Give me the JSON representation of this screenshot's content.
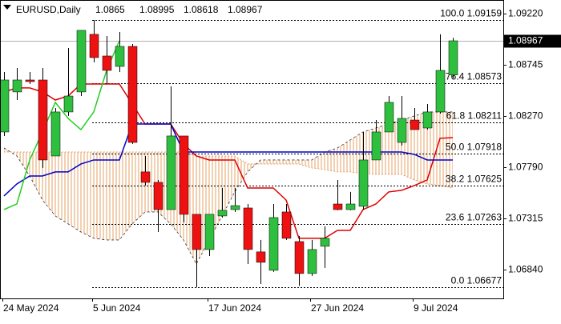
{
  "chart_data": {
    "type": "candlestick",
    "title": "EURUSD,Daily",
    "categories": [
      "24 May 2024",
      null,
      null,
      null,
      null,
      null,
      null,
      "5 Jun 2024",
      null,
      null,
      null,
      null,
      null,
      null,
      null,
      null,
      "17 Jun 2024",
      null,
      null,
      null,
      null,
      null,
      null,
      null,
      "27 Jun 2024",
      null,
      null,
      null,
      null,
      null,
      null,
      null,
      "9 Jul 2024",
      null,
      null,
      null
    ],
    "open": [
      1.0812,
      1.08492,
      1.08603,
      1.08603,
      1.07897,
      1.08306,
      1.08492,
      1.09027,
      1.08826,
      1.08729,
      1.08915,
      1.07749,
      1.07652,
      1.07399,
      1.08083,
      1.07355,
      1.07028,
      1.0734,
      1.07399,
      1.07414,
      1.07006,
      1.06835,
      1.07377,
      1.07102,
      1.06805,
      1.07058,
      1.07451,
      1.07399,
      1.07429,
      1.0786,
      1.0812,
      1.08023,
      1.08231,
      1.08157,
      1.08306,
      1.0865
    ],
    "high": [
      1.08677,
      1.08714,
      1.08677,
      1.08714,
      1.08343,
      1.089,
      1.09064,
      1.09159,
      1.09012,
      1.09049,
      1.08937,
      1.07897,
      1.07674,
      1.08544,
      1.08083,
      1.07355,
      1.07355,
      1.076,
      1.076,
      1.07451,
      1.07117,
      1.07451,
      1.07451,
      1.07154,
      1.07117,
      1.07243,
      1.07674,
      1.07563,
      1.0812,
      1.08231,
      1.08454,
      1.08454,
      1.08343,
      1.0838,
      1.09027,
      1.08995
    ],
    "low": [
      1.08083,
      1.08417,
      1.08566,
      1.07786,
      1.07897,
      1.08269,
      1.08454,
      1.08766,
      1.08566,
      1.08677,
      1.08009,
      1.07622,
      1.07191,
      1.07399,
      1.0728,
      1.06677,
      1.06968,
      1.07325,
      1.07377,
      1.06894,
      1.06708,
      1.0682,
      1.07117,
      1.0669,
      1.06783,
      1.06857,
      1.07392,
      1.07392,
      1.07399,
      1.0786,
      1.0812,
      1.07994,
      1.08142,
      1.08142,
      1.08291,
      1.08618
    ],
    "close": [
      1.08603,
      1.08603,
      1.08588,
      1.0786,
      1.08306,
      1.08454,
      1.09064,
      1.08811,
      1.08692,
      1.08915,
      1.08023,
      1.07652,
      1.07399,
      1.08083,
      1.07355,
      1.07028,
      1.07355,
      1.07392,
      1.07436,
      1.07028,
      1.06909,
      1.07325,
      1.07132,
      1.06805,
      1.07028,
      1.07132,
      1.07399,
      1.07451,
      1.0786,
      1.0812,
      1.08395,
      1.08246,
      1.08142,
      1.08306,
      1.08692,
      1.08967
    ],
    "up_color": "#2fbf3f",
    "down_color": "#ee1111",
    "lines": [
      {
        "color": "#dd0000",
        "values": [
          1.08492,
          1.08529,
          1.08529,
          1.08492,
          1.08417,
          1.08454,
          1.08566,
          1.08566,
          1.08566,
          1.08566,
          1.0838,
          1.08194,
          1.08194,
          1.08194,
          1.08009,
          1.07897,
          1.0786,
          1.0786,
          1.0786,
          1.076,
          1.076,
          1.076,
          1.07488,
          1.07132,
          1.07132,
          1.07132,
          1.07206,
          1.07206,
          1.07399,
          1.07451,
          1.07563,
          1.07578,
          1.07622,
          1.07674,
          1.08061,
          1.08068
        ]
      },
      {
        "color": "#0000c8",
        "values": [
          1.07526,
          1.07637,
          1.07711,
          1.07711,
          1.07749,
          1.07749,
          1.07823,
          1.0786,
          1.0786,
          1.0786,
          1.08194,
          1.08194,
          1.08194,
          1.08194,
          1.07934,
          1.07934,
          1.07934,
          1.07934,
          1.07934,
          1.07934,
          1.07934,
          1.07934,
          1.07934,
          1.07934,
          1.07934,
          1.07934,
          1.07934,
          1.07934,
          1.07934,
          1.07934,
          1.07934,
          1.07934,
          1.07912,
          1.0786,
          1.0786,
          1.0786
        ]
      },
      {
        "color": "#22cc22",
        "values": [
          1.07399,
          1.07451,
          1.0786,
          1.0812,
          1.08395,
          1.08246,
          1.08142,
          1.08306,
          1.08692,
          1.08967,
          null,
          null,
          null,
          null,
          null,
          null,
          null,
          null,
          null,
          null,
          null,
          null,
          null,
          null,
          null,
          null,
          null,
          null,
          null,
          null,
          null,
          null,
          null,
          null,
          null,
          null
        ]
      }
    ],
    "cloud": {
      "color": "#e08a40",
      "span_a": [
        1.07971,
        1.07897,
        1.07711,
        1.07488,
        1.0734,
        1.07266,
        1.07191,
        1.07132,
        1.07117,
        1.07117,
        1.07266,
        1.07377,
        1.07377,
        1.07266,
        1.07117,
        1.06894,
        1.07117,
        1.0734,
        1.07563,
        1.07749,
        1.0786,
        1.0786,
        1.0786,
        1.0786,
        1.0786,
        1.07934,
        1.07971,
        1.08046,
        1.0812,
        1.08157,
        1.08194,
        1.08231,
        1.08269,
        1.08306,
        1.08306,
        1.08306
      ],
      "span_b": [
        1.07934,
        1.07934,
        1.07934,
        1.07934,
        1.07934,
        1.07934,
        1.07934,
        1.07934,
        1.07934,
        1.07934,
        1.07934,
        1.07934,
        1.07934,
        1.07934,
        1.07934,
        1.07897,
        1.07897,
        1.07897,
        1.07897,
        1.07823,
        1.07823,
        1.07823,
        1.07823,
        1.07823,
        1.07786,
        1.07771,
        1.07749,
        1.07749,
        1.07734,
        1.07726,
        1.07726,
        1.07726,
        1.07674,
        1.07637,
        1.07622,
        1.076
      ]
    },
    "fib_levels": [
      {
        "level": "100.0",
        "price": 1.09159
      },
      {
        "level": "76.4",
        "price": 1.08573
      },
      {
        "level": "61.8",
        "price": 1.08211
      },
      {
        "level": "50.0",
        "price": 1.07918
      },
      {
        "level": "38.2",
        "price": 1.07625
      },
      {
        "level": "23.6",
        "price": 1.07263
      },
      {
        "level": "0.0",
        "price": 1.06677
      }
    ],
    "ylim": [
      1.06574,
      1.09346
    ],
    "yticks": [
      {
        "value": 1.0922,
        "label": "1.09220"
      },
      1.08745,
      {
        "value": 1.0827,
        "label": "1.08270"
      },
      {
        "value": 1.0779,
        "label": "1.07790"
      },
      1.07315,
      {
        "value": 1.0684,
        "label": "1.06840"
      }
    ]
  }
}
